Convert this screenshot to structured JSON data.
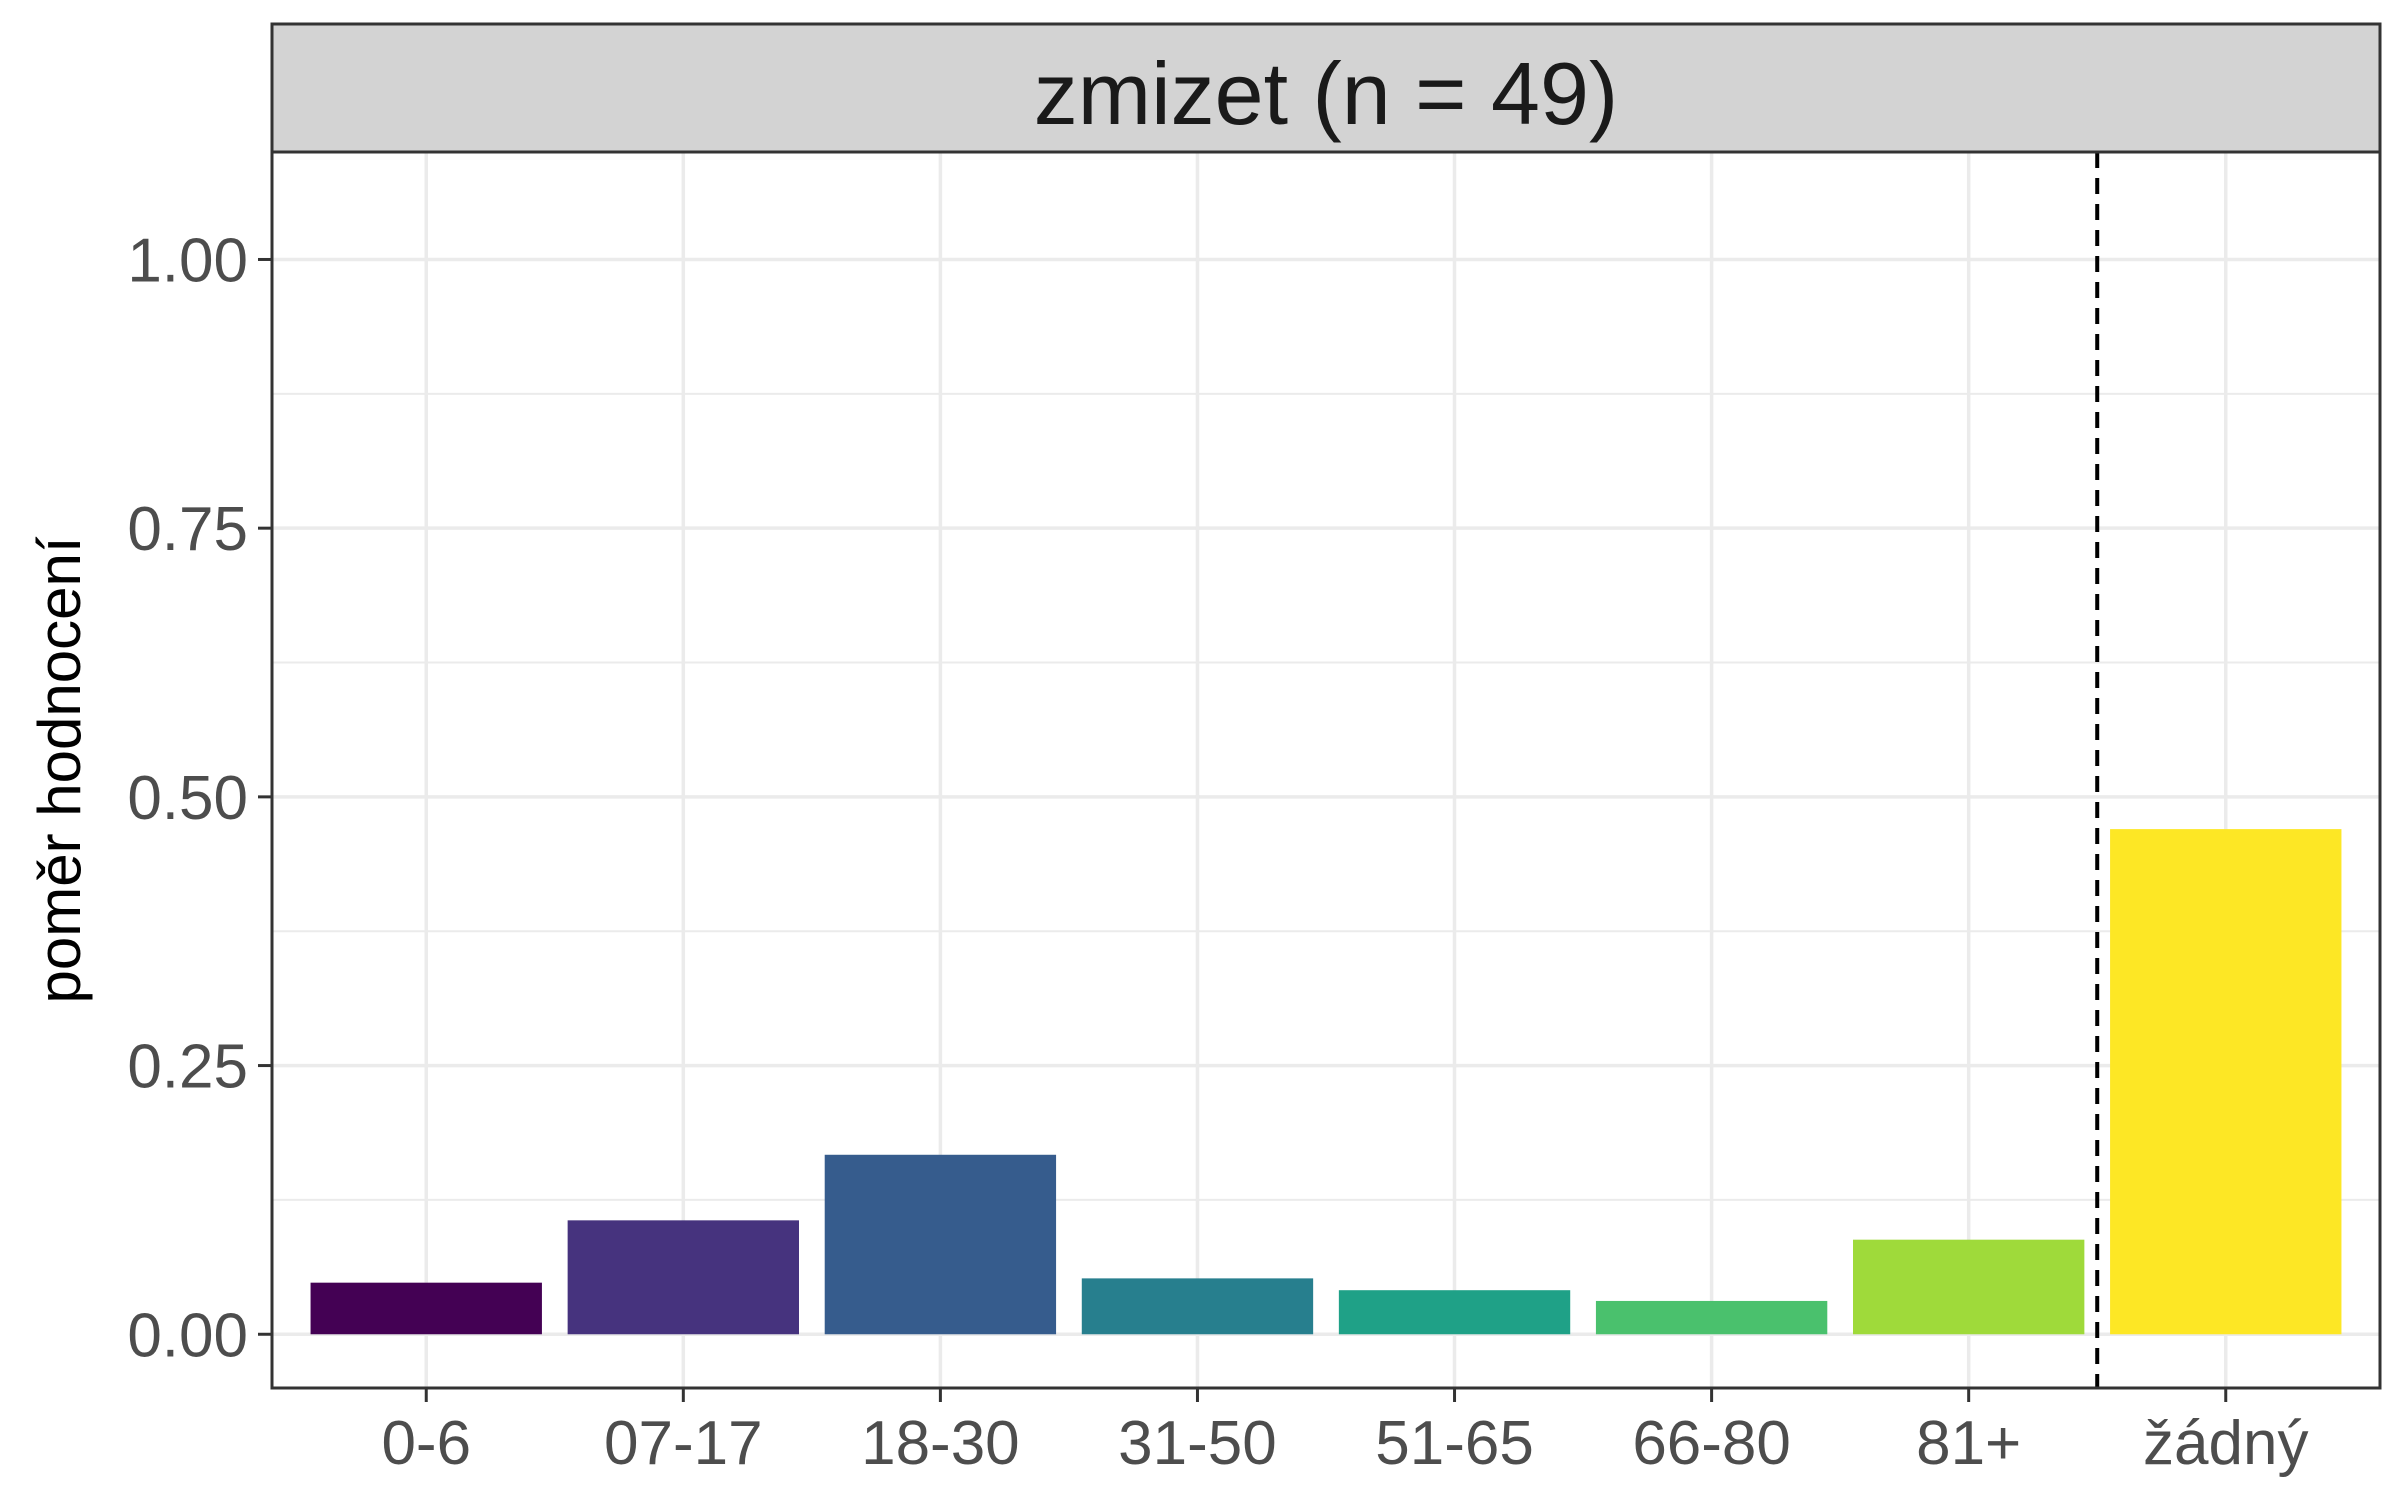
{
  "chart_data": {
    "type": "bar",
    "title": "zmizet (n = 49)",
    "xlabel": "",
    "ylabel": "poměr hodnocení",
    "categories": [
      "0-6",
      "07-17",
      "18-30",
      "31-50",
      "51-65",
      "66-80",
      "81+",
      "žádný"
    ],
    "values": [
      0.048,
      0.106,
      0.167,
      0.052,
      0.041,
      0.031,
      0.088,
      0.47
    ],
    "colors": [
      "#440154",
      "#46337e",
      "#365c8d",
      "#277f8e",
      "#1fa187",
      "#4ac16d",
      "#9fda3a",
      "#fde725"
    ],
    "ylim": [
      -0.05,
      1.1
    ],
    "yticks": [
      0.0,
      0.25,
      0.5,
      0.75,
      1.0
    ],
    "ytick_labels": [
      "0.00",
      "0.25",
      "0.50",
      "0.75",
      "1.00"
    ],
    "grid": true,
    "separator_line": "dashed, between 81+ and žádný",
    "theme": "bw",
    "strip_color": "#d3d3d3"
  }
}
